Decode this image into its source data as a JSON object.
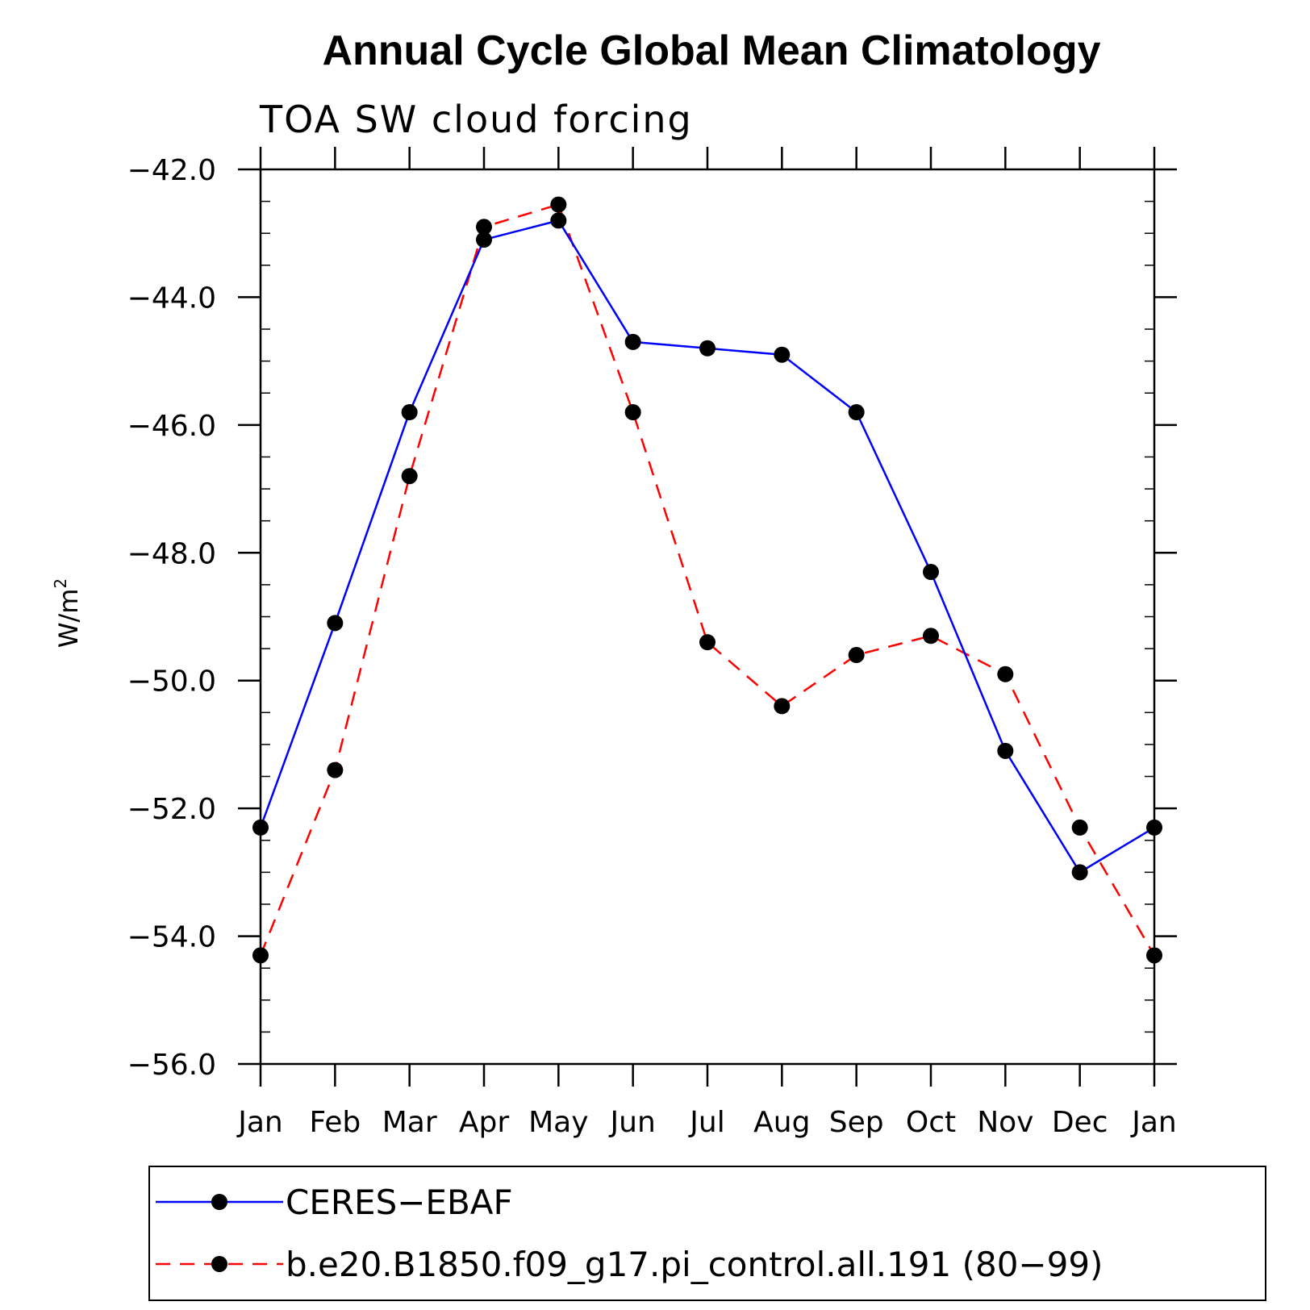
{
  "chart_data": {
    "type": "line",
    "title": "Annual Cycle Global Mean Climatology",
    "subtitle": "TOA SW cloud forcing",
    "xlabel": "",
    "ylabel": "W/m",
    "ylabel_superscript": "2",
    "categories": [
      "Jan",
      "Feb",
      "Mar",
      "Apr",
      "May",
      "Jun",
      "Jul",
      "Aug",
      "Sep",
      "Oct",
      "Nov",
      "Dec",
      "Jan"
    ],
    "ylim": [
      -56.0,
      -42.0
    ],
    "yticks": [
      -42.0,
      -44.0,
      -46.0,
      -48.0,
      -50.0,
      -52.0,
      -54.0,
      -56.0
    ],
    "ytick_labels": [
      "−42.0",
      "−44.0",
      "−46.0",
      "−48.0",
      "−50.0",
      "−52.0",
      "−54.0",
      "−56.0"
    ],
    "series": [
      {
        "name": "CERES−EBAF",
        "color": "#0000ff",
        "dash": "solid",
        "marker": "circle",
        "values": [
          -52.3,
          -49.1,
          -45.8,
          -43.1,
          -42.8,
          -44.7,
          -44.8,
          -44.9,
          -45.8,
          -48.3,
          -51.1,
          -53.0,
          -52.3
        ]
      },
      {
        "name": "b.e20.B1850.f09_g17.pi_control.all.191 (80−99)",
        "color": "#ff0000",
        "dash": "dashed",
        "marker": "circle",
        "values": [
          -54.3,
          -51.4,
          -46.8,
          -42.9,
          -42.55,
          -45.8,
          -49.4,
          -50.4,
          -49.6,
          -49.3,
          -49.9,
          -52.3,
          -54.3
        ]
      }
    ],
    "legend_position": "bottom",
    "grid": false
  }
}
